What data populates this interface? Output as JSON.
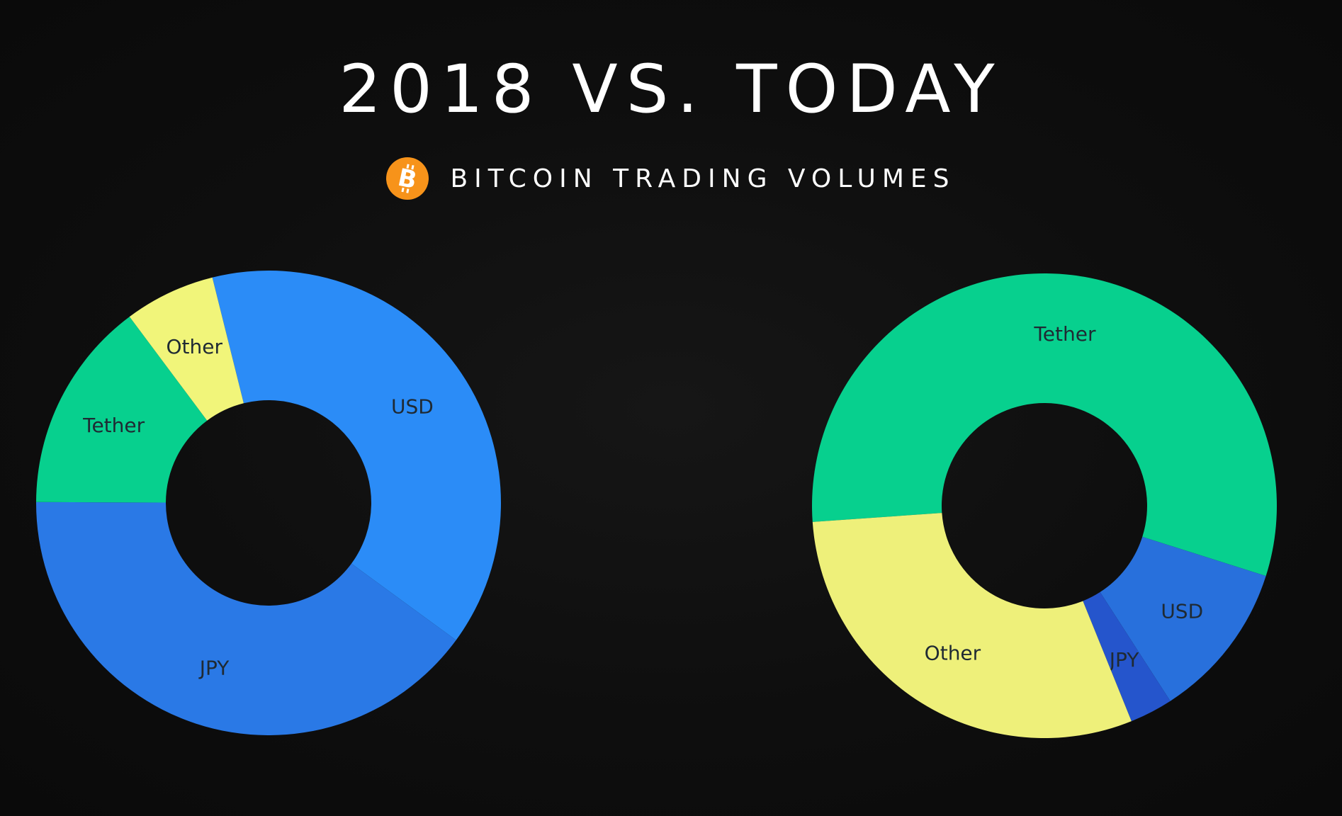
{
  "header": {
    "title": "2018 VS. TODAY",
    "subtitle": "BITCOIN TRADING VOLUMES",
    "icon": "bitcoin-icon",
    "icon_color": "#f7931a"
  },
  "chart_data": [
    {
      "type": "pie",
      "title": "",
      "donut": true,
      "legend": "none",
      "slices": [
        {
          "label": "USD",
          "value": 37,
          "color": "#2b8cf7"
        },
        {
          "label": "JPY",
          "value": 38,
          "color": "#2a79e6"
        },
        {
          "label": "Tether",
          "value": 14,
          "color": "#07d08e"
        },
        {
          "label": "Other",
          "value": 6,
          "color": "#f1f57a"
        }
      ]
    },
    {
      "type": "pie",
      "title": "",
      "donut": true,
      "legend": "none",
      "slices": [
        {
          "label": "Tether",
          "value": 56,
          "color": "#07d08e"
        },
        {
          "label": "USD",
          "value": 11,
          "color": "#2870dc"
        },
        {
          "label": "JPY",
          "value": 3,
          "color": "#2555cc"
        },
        {
          "label": "Other",
          "value": 30,
          "color": "#eef07a"
        }
      ]
    }
  ]
}
